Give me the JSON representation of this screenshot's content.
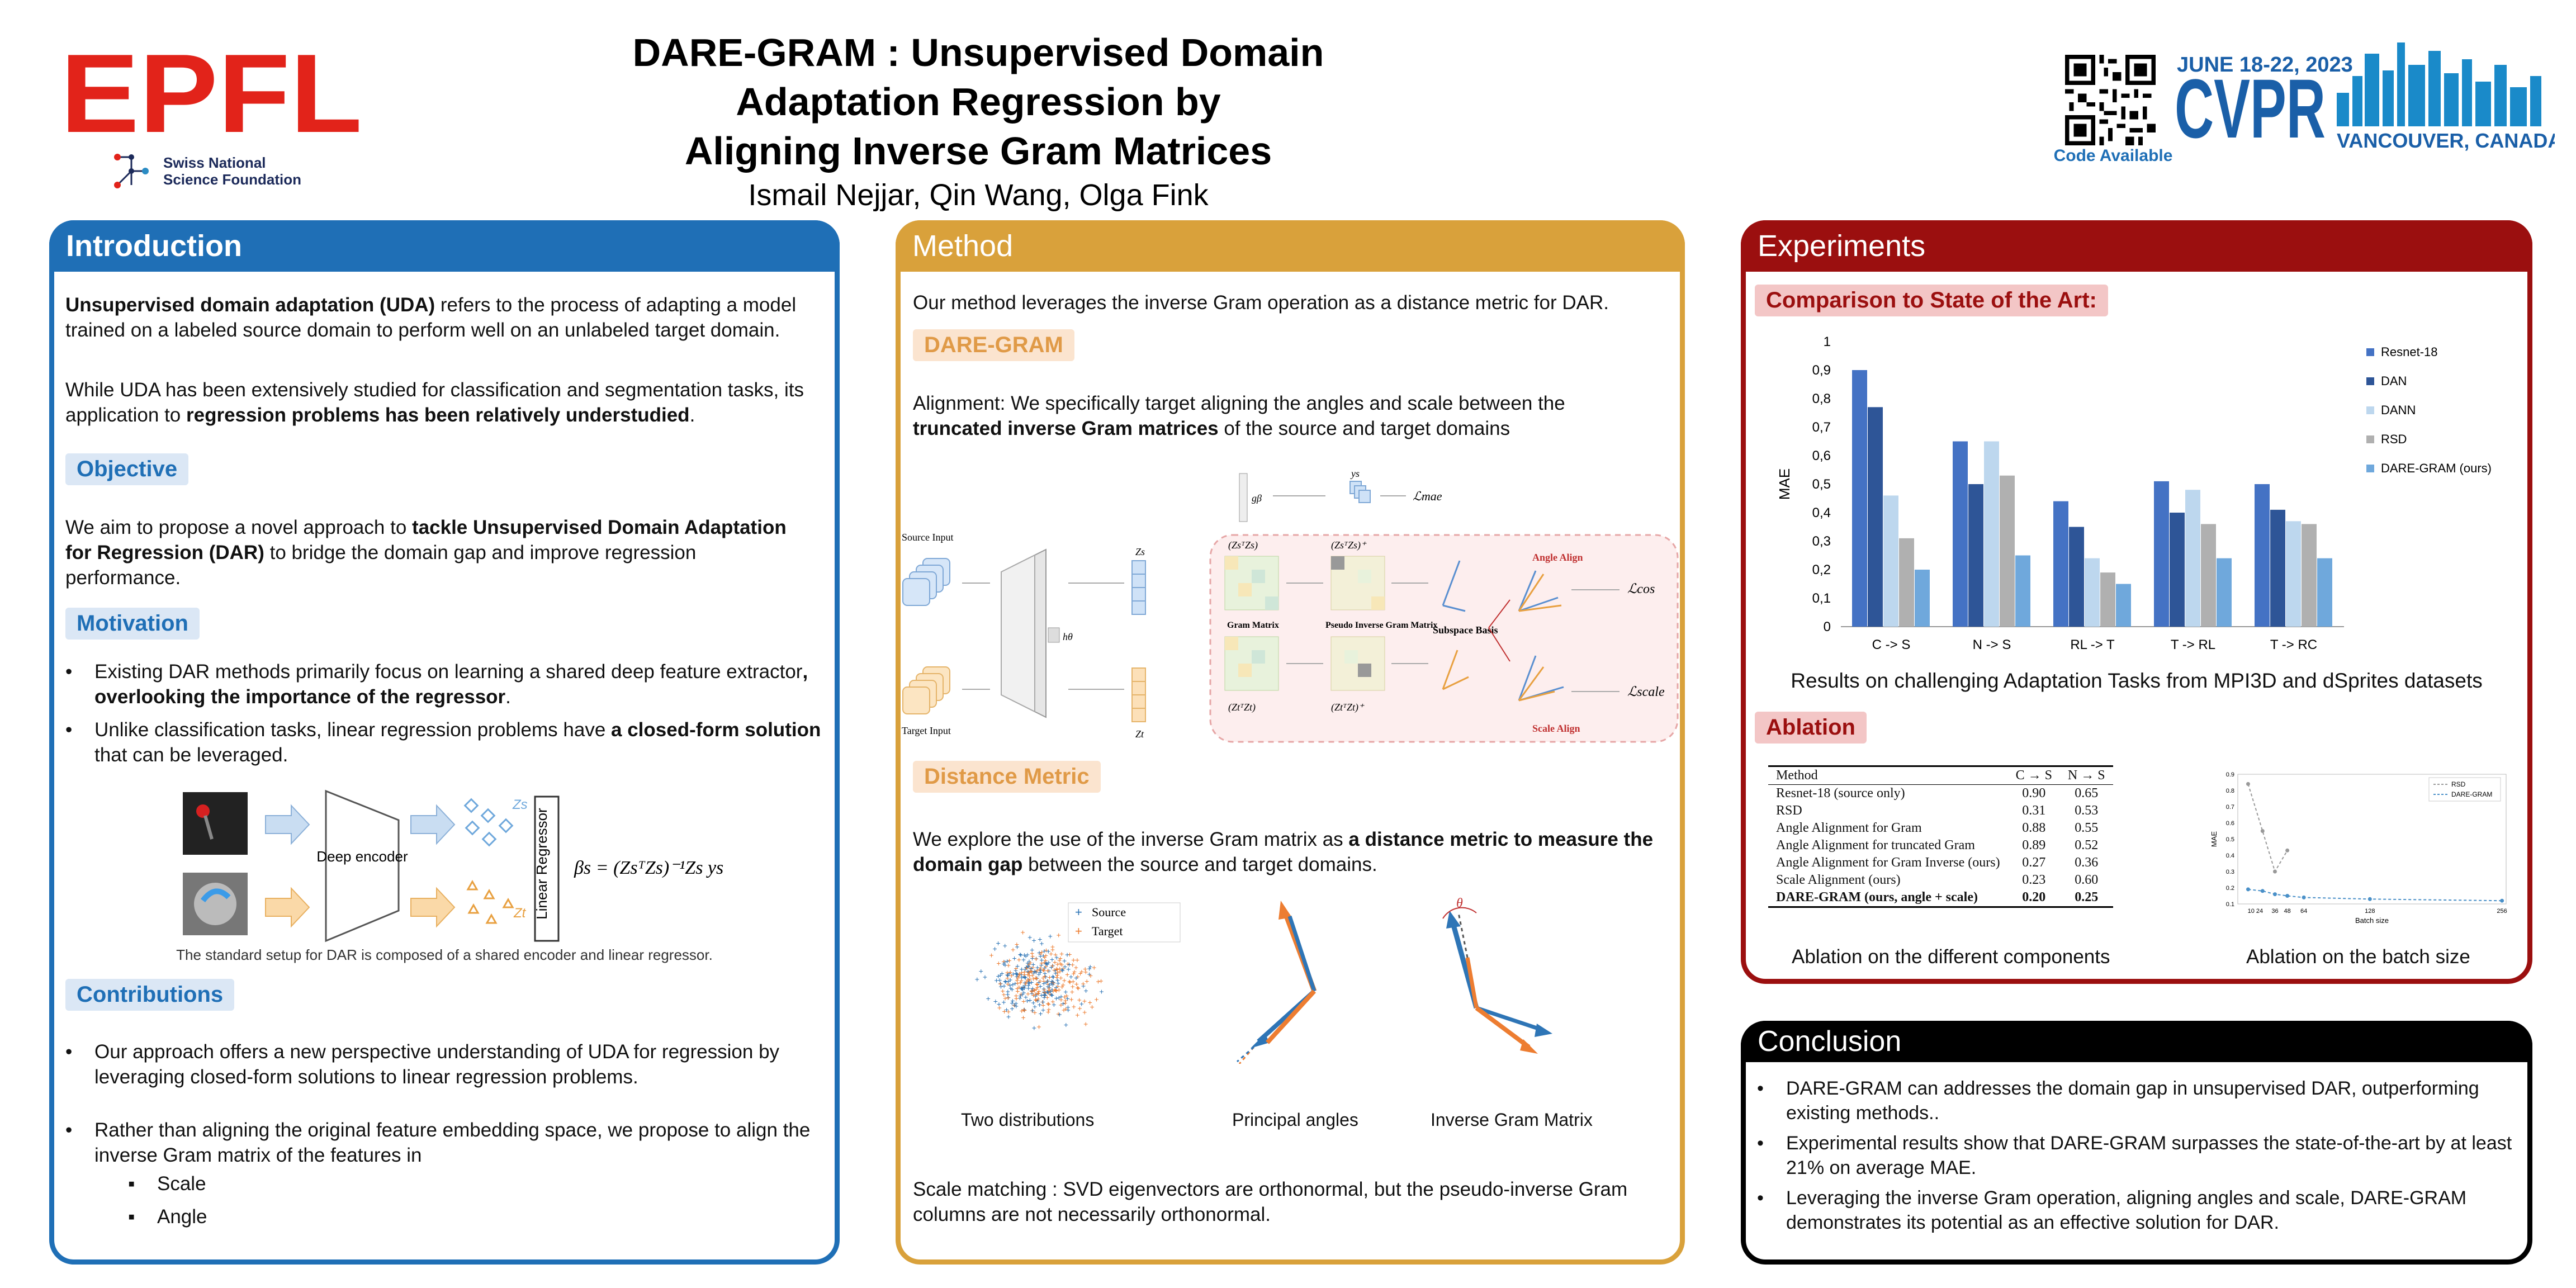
{
  "header": {
    "logo_text": "EPFL",
    "funder_line1": "Swiss National",
    "funder_line2": "Science Foundation",
    "title_line1": "DARE-GRAM :  Unsupervised Domain Adaptation Regression by",
    "title_line2": "Aligning Inverse Gram Matrices",
    "authors": "Ismail Nejjar, Qin Wang, Olga Fink",
    "code_label": "Code Available",
    "conf_date": "JUNE 18-22, 2023",
    "conf_name": "CVPR",
    "conf_place": "VANCOUVER, CANADA"
  },
  "intro": {
    "title": "Introduction",
    "p1_bold": "Unsupervised domain adaptation (UDA)",
    "p1_rest": " refers to the process of adapting a model trained on a labeled source domain to perform well on an unlabeled target domain.",
    "p2_a": "While UDA has been extensively studied for classification and segmentation tasks, its application to ",
    "p2_bold": "regression problems has been relatively understudied",
    "p2_end": ".",
    "objective_title": "Objective",
    "obj_a": "We aim to propose a novel approach to ",
    "obj_bold": "tackle Unsupervised Domain Adaptation for Regression (DAR)",
    "obj_rest": " to bridge the domain gap and improve regression performance.",
    "motivation_title": "Motivation",
    "mot1_a": "Existing DAR methods primarily  focus on learning a shared deep feature extractor",
    "mot1_bold": ", overlooking the importance of the regressor",
    "mot1_end": ".",
    "mot2_a": "Unlike classification tasks, linear regression problems have ",
    "mot2_bold": "a closed-form solution",
    "mot2_rest": " that can be leveraged.",
    "fig_encoder": "Deep encoder",
    "fig_regressor": "Linear Regressor",
    "fig_zs": "Zs",
    "fig_zt": "Zt",
    "fig_formula": "βs = (ZsᵀZs)⁻¹Zs ys",
    "fig_caption": "The standard setup for DAR is composed of a shared encoder and linear regressor.",
    "contributions_title": "Contributions",
    "con1": "Our approach offers a new perspective  understanding of UDA for regression by leveraging closed-form solutions to linear regression problems.",
    "con2": "Rather than aligning the original feature embedding space, we propose to align the inverse Gram matrix of the features in",
    "sub1": "Scale",
    "sub2": "Angle"
  },
  "method": {
    "title": "Method",
    "intro": "Our method leverages the inverse Gram operation as a distance metric for DAR.",
    "daregram_title": "DARE-GRAM",
    "align_a": "Alignment: We specifically target aligning the angles and scale between the ",
    "align_bold": "truncated inverse Gram matrices",
    "align_rest": " of the source and target domains",
    "diag": {
      "source_input": "Source Input",
      "target_input": "Target Input",
      "h": "hθ",
      "gb": "gβ",
      "ys": "ys",
      "zs": "Zs",
      "zt": "Zt",
      "lmae": "ℒmae",
      "lcos": "ℒcos",
      "lscale": "ℒscale",
      "gram_s": "(ZsᵀZs)",
      "gram_t": "(ZtᵀZt)",
      "pinv_s": "(ZsᵀZs)⁺",
      "pinv_t": "(ZtᵀZt)⁺",
      "gram_label": "Gram Matrix",
      "pinv_label": "Pseudo Inverse Gram Matrix",
      "subspace": "Subspace Basis",
      "angle_align": "Angle Align",
      "scale_align": "Scale Align"
    },
    "distance_title": "Distance Metric",
    "dist_a": "We explore the use of the inverse Gram matrix as ",
    "dist_bold": "a distance metric to measure the domain gap",
    "dist_rest": " between the source and target domains.",
    "legend_source": "Source",
    "legend_target": "Target",
    "cap1": "Two distributions",
    "cap2": "Principal angles",
    "cap3": "Inverse Gram Matrix",
    "theta": "θ",
    "scale_note": "Scale matching : SVD eigenvectors are orthonormal, but the pseudo-inverse Gram columns are not necessarily orthonormal."
  },
  "experiments": {
    "title": "Experiments",
    "sota_title": "Comparison to State of the Art:",
    "chart_caption": "Results on challenging Adaptation Tasks from MPI3D and dSprites datasets",
    "ablation_title": "Ablation",
    "table": {
      "headers": [
        "Method",
        "C → S",
        "N → S"
      ],
      "rows": [
        [
          "Resnet-18 (source only)",
          "0.90",
          "0.65"
        ],
        [
          "RSD",
          "0.31",
          "0.53"
        ],
        [
          "Angle Alignment for Gram",
          "0.88",
          "0.55"
        ],
        [
          "Angle Alignment for truncated Gram",
          "0.89",
          "0.52"
        ],
        [
          "Angle Alignment for Gram Inverse (ours)",
          "0.27",
          "0.36"
        ],
        [
          "Scale Alignment (ours)",
          "0.23",
          "0.60"
        ],
        [
          "DARE-GRAM (ours, angle + scale)",
          "0.20",
          "0.25"
        ]
      ]
    },
    "abl_cap1": "Ablation on the different components",
    "abl_cap2": "Ablation on the batch size"
  },
  "conclusion": {
    "title": "Conclusion",
    "c1": "DARE-GRAM can addresses the domain gap in unsupervised DAR, outperforming existing methods..",
    "c2": "Experimental results show that DARE-GRAM surpasses the state-of-the-art by at least 21% on average MAE.",
    "c3": "Leveraging the inverse Gram operation, aligning angles and scale, DARE-GRAM demonstrates its potential as an effective solution for DAR."
  },
  "colors": {
    "intro": "#1f6fb6",
    "method": "#d9a13b",
    "experiments": "#9b0f0f",
    "epfl_red": "#e2231a"
  },
  "chart_data": [
    {
      "type": "bar",
      "categories": [
        "C ->  S",
        "N ->  S",
        "RL ->  T",
        "T ->  RL",
        "T ->  RC"
      ],
      "series": [
        {
          "name": "Resnet-18",
          "values": [
            0.9,
            0.65,
            0.44,
            0.51,
            0.5
          ],
          "color": "#4472c4"
        },
        {
          "name": "DAN",
          "values": [
            0.77,
            0.5,
            0.35,
            0.4,
            0.41
          ],
          "color": "#2e5597"
        },
        {
          "name": "DANN",
          "values": [
            0.46,
            0.65,
            0.24,
            0.48,
            0.37
          ],
          "color": "#bdd7ee"
        },
        {
          "name": "RSD",
          "values": [
            0.31,
            0.53,
            0.19,
            0.36,
            0.36
          ],
          "color": "#b0b0b0"
        },
        {
          "name": "DARE-GRAM (ours)",
          "values": [
            0.2,
            0.25,
            0.15,
            0.24,
            0.24
          ],
          "color": "#6fa8dc"
        }
      ],
      "ylabel": "MAE",
      "ylim": [
        0,
        1
      ],
      "yticks": [
        "0",
        "0,1",
        "0,2",
        "0,3",
        "0,4",
        "0,5",
        "0,6",
        "0,7",
        "0,8",
        "0,9",
        "1"
      ],
      "legend": "right",
      "grid": false
    },
    {
      "type": "line",
      "x": [
        10,
        24,
        36,
        48,
        64,
        128,
        256
      ],
      "xticks": [
        "10 24",
        "36",
        "48",
        "64",
        "128",
        "256"
      ],
      "series": [
        {
          "name": "RSD",
          "x": [
            10,
            24,
            36,
            48
          ],
          "values": [
            0.84,
            0.55,
            0.3,
            0.43
          ],
          "color": "#999999"
        },
        {
          "name": "DARE-GRAM",
          "x": [
            10,
            24,
            36,
            48,
            64,
            128,
            256
          ],
          "values": [
            0.19,
            0.18,
            0.16,
            0.15,
            0.14,
            0.13,
            0.12
          ],
          "color": "#4a90c8"
        }
      ],
      "xlabel": "Batch size",
      "ylabel": "MAE",
      "ylim": [
        0.1,
        0.9
      ],
      "yticks": [
        "0.9",
        "0.8",
        "0.7",
        "0.6",
        "0.5",
        "0.4",
        "0.3",
        "0.2",
        "0.1"
      ],
      "legend": "top-right"
    }
  ]
}
